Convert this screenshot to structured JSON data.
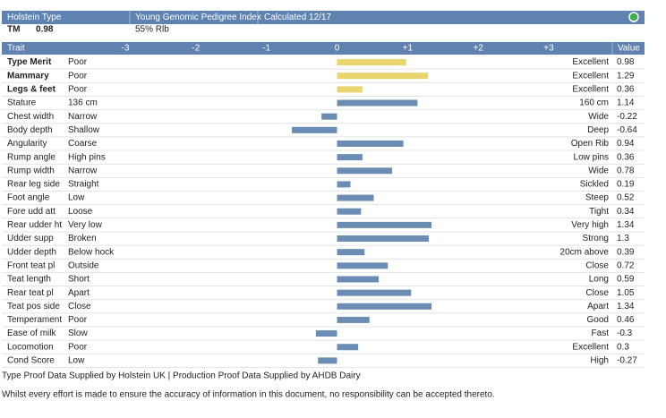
{
  "header": {
    "breed": "Holstein Type",
    "index": "Young Genomic Pedigree Index",
    "calculated": "Calculated 12/17",
    "tm_label": "TM",
    "tm_value": "0.98",
    "reliability": "55% Rlb"
  },
  "chart_data": {
    "type": "bar",
    "trait_header": "Trait",
    "value_header": "Value",
    "categories": [
      "Type Merit",
      "Mammary",
      "Legs & feet",
      "Stature",
      "Chest width",
      "Body depth",
      "Angularity",
      "Rump angle",
      "Rump width",
      "Rear leg side",
      "Foot angle",
      "Fore udd att",
      "Rear udder ht",
      "Udder supp",
      "Udder depth",
      "Front teat pl",
      "Teat length",
      "Rear teat pl",
      "Teat pos side",
      "Temperament",
      "Ease of milk",
      "Locomotion",
      "Cond Score"
    ],
    "low_labels": [
      "Poor",
      "Poor",
      "Poor",
      "136 cm",
      "Narrow",
      "Shallow",
      "Coarse",
      "High pins",
      "Narrow",
      "Straight",
      "Low",
      "Loose",
      "Very low",
      "Broken",
      "Below hock",
      "Outside",
      "Short",
      "Apart",
      "Close",
      "Poor",
      "Slow",
      "Poor",
      "Low"
    ],
    "high_labels": [
      "Excellent",
      "Excellent",
      "Excellent",
      "160 cm",
      "Wide",
      "Deep",
      "Open Rib",
      "Low pins",
      "Wide",
      "Sickled",
      "Steep",
      "Tight",
      "Very high",
      "Strong",
      "20cm above",
      "Close",
      "Long",
      "Close",
      "Apart",
      "Good",
      "Fast",
      "Excellent",
      "High"
    ],
    "values": [
      0.98,
      1.29,
      0.36,
      1.14,
      -0.22,
      -0.64,
      0.94,
      0.36,
      0.78,
      0.19,
      0.52,
      0.34,
      1.34,
      1.3,
      0.39,
      0.72,
      0.59,
      1.05,
      1.34,
      0.46,
      -0.3,
      0.3,
      -0.27
    ],
    "bar_colors": [
      "#e9d46e",
      "#e9d46e",
      "#e9d46e",
      "#6b8db3",
      "#6b8db3",
      "#6b8db3",
      "#6b8db3",
      "#6b8db3",
      "#6b8db3",
      "#6b8db3",
      "#6b8db3",
      "#6b8db3",
      "#6b8db3",
      "#6b8db3",
      "#6b8db3",
      "#6b8db3",
      "#6b8db3",
      "#6b8db3",
      "#6b8db3",
      "#6b8db3",
      "#6b8db3",
      "#6b8db3",
      "#6b8db3"
    ],
    "xlim": [
      -3,
      3
    ],
    "xticks": [
      -3,
      -2,
      -1,
      0,
      {
        "value": 1,
        "label": "+1"
      },
      {
        "value": 2,
        "label": "+2"
      },
      {
        "value": 3,
        "label": "+3"
      }
    ]
  },
  "footer": {
    "sources": "Type Proof Data Supplied by Holstein UK | Production Proof Data Supplied by AHDB Dairy",
    "disclaimer": "Whilst every effort is made to ensure the accuracy of information in this document, no responsibility can be accepted thereto."
  }
}
